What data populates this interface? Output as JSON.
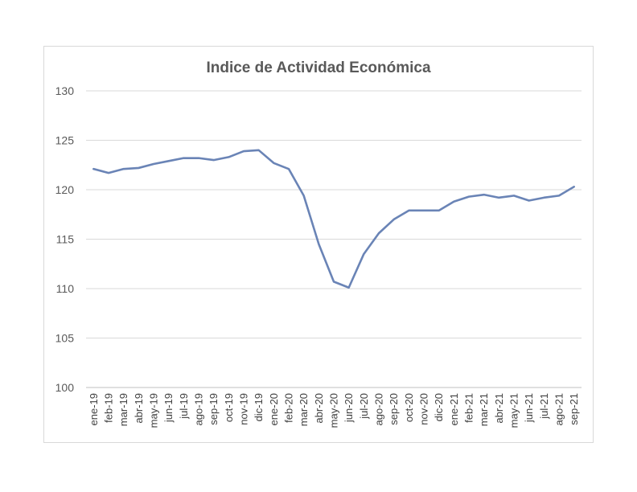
{
  "chart_data": {
    "type": "line",
    "title": "Indice de Actividad Económica",
    "xlabel": "",
    "ylabel": "",
    "ylim": [
      100,
      130
    ],
    "yticks": [
      100,
      105,
      110,
      115,
      120,
      125,
      130
    ],
    "grid": "horizontal",
    "legend": "none",
    "line_color": "#6a84b6",
    "categories": [
      "ene-19",
      "feb-19",
      "mar-19",
      "abr-19",
      "may-19",
      "jun-19",
      "jul-19",
      "ago-19",
      "sep-19",
      "oct-19",
      "nov-19",
      "dic-19",
      "ene-20",
      "feb-20",
      "mar-20",
      "abr-20",
      "may-20",
      "jun-20",
      "jul-20",
      "ago-20",
      "sep-20",
      "oct-20",
      "nov-20",
      "dic-20",
      "ene-21",
      "feb-21",
      "mar-21",
      "abr-21",
      "may-21",
      "jun-21",
      "jul-21",
      "ago-21",
      "sep-21"
    ],
    "series": [
      {
        "values": [
          122.1,
          121.7,
          122.1,
          122.2,
          122.6,
          122.9,
          123.2,
          123.2,
          123.0,
          123.3,
          123.9,
          124.0,
          122.7,
          122.1,
          119.4,
          114.5,
          110.7,
          110.1,
          113.5,
          115.6,
          117.0,
          117.9,
          117.9,
          117.9,
          118.8,
          119.3,
          119.5,
          119.2,
          119.4,
          118.9,
          119.2,
          119.4,
          120.3
        ]
      }
    ]
  }
}
